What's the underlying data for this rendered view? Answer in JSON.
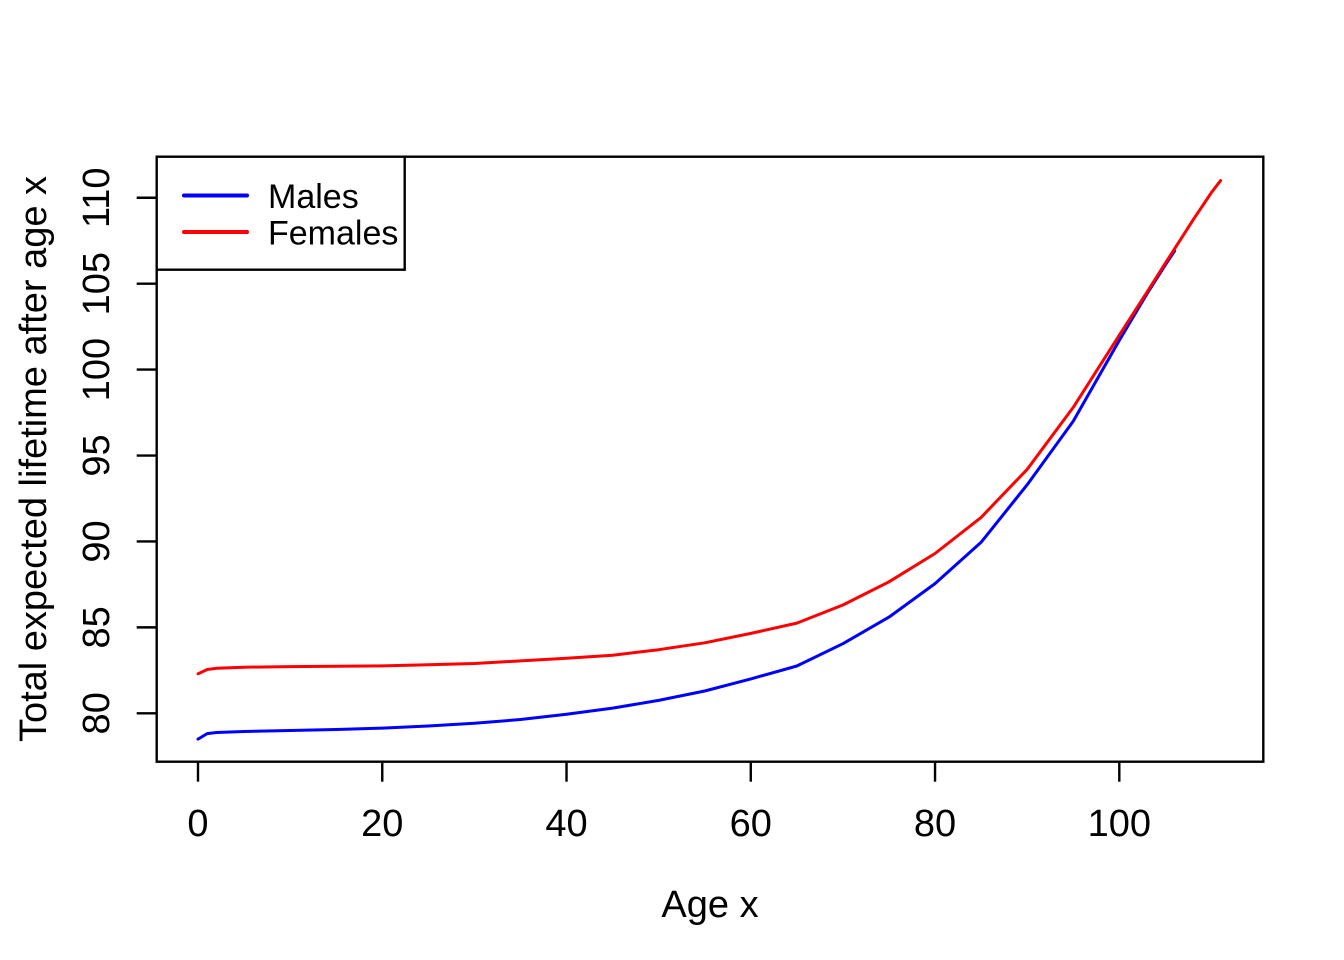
{
  "figure": {
    "background": "#ffffff",
    "foreground": "#000000"
  },
  "chart_data": {
    "type": "line",
    "title": "",
    "xlabel": "Age x",
    "ylabel": "Total expected lifetime after age x",
    "xlim": [
      -4.5,
      115.6
    ],
    "ylim": [
      77.2,
      112.4
    ],
    "x_ticks": [
      0,
      20,
      40,
      60,
      80,
      100
    ],
    "y_ticks": [
      80,
      85,
      90,
      95,
      100,
      105,
      110
    ],
    "grid": false,
    "legend_position": "top-left",
    "legend": {
      "items": [
        {
          "label": "Males",
          "color": "#0000FF"
        },
        {
          "label": "Females",
          "color": "#FF0000"
        }
      ]
    },
    "series": [
      {
        "name": "Males",
        "color": "#0000FF",
        "points": [
          [
            0,
            78.5
          ],
          [
            1,
            78.82
          ],
          [
            2,
            78.88
          ],
          [
            5,
            78.94
          ],
          [
            10,
            79.0
          ],
          [
            15,
            79.06
          ],
          [
            20,
            79.14
          ],
          [
            25,
            79.26
          ],
          [
            30,
            79.42
          ],
          [
            35,
            79.64
          ],
          [
            40,
            79.95
          ],
          [
            45,
            80.3
          ],
          [
            50,
            80.75
          ],
          [
            55,
            81.3
          ],
          [
            60,
            82.0
          ],
          [
            65,
            82.75
          ],
          [
            70,
            84.05
          ],
          [
            75,
            85.6
          ],
          [
            80,
            87.55
          ],
          [
            85,
            89.95
          ],
          [
            90,
            93.3
          ],
          [
            95,
            97.0
          ],
          [
            100,
            101.7
          ],
          [
            103,
            104.4
          ],
          [
            105,
            106.1
          ],
          [
            106,
            106.9
          ]
        ]
      },
      {
        "name": "Females",
        "color": "#FF0000",
        "points": [
          [
            0,
            82.3
          ],
          [
            1,
            82.55
          ],
          [
            2,
            82.62
          ],
          [
            5,
            82.68
          ],
          [
            10,
            82.72
          ],
          [
            15,
            82.74
          ],
          [
            20,
            82.76
          ],
          [
            25,
            82.82
          ],
          [
            30,
            82.9
          ],
          [
            35,
            83.05
          ],
          [
            40,
            83.2
          ],
          [
            45,
            83.38
          ],
          [
            50,
            83.7
          ],
          [
            55,
            84.1
          ],
          [
            60,
            84.65
          ],
          [
            65,
            85.25
          ],
          [
            70,
            86.3
          ],
          [
            75,
            87.65
          ],
          [
            80,
            89.3
          ],
          [
            85,
            91.4
          ],
          [
            90,
            94.2
          ],
          [
            95,
            97.8
          ],
          [
            100,
            102.0
          ],
          [
            103,
            104.5
          ],
          [
            105,
            106.2
          ],
          [
            108,
            108.7
          ],
          [
            110,
            110.3
          ],
          [
            111,
            111.0
          ]
        ]
      }
    ]
  }
}
